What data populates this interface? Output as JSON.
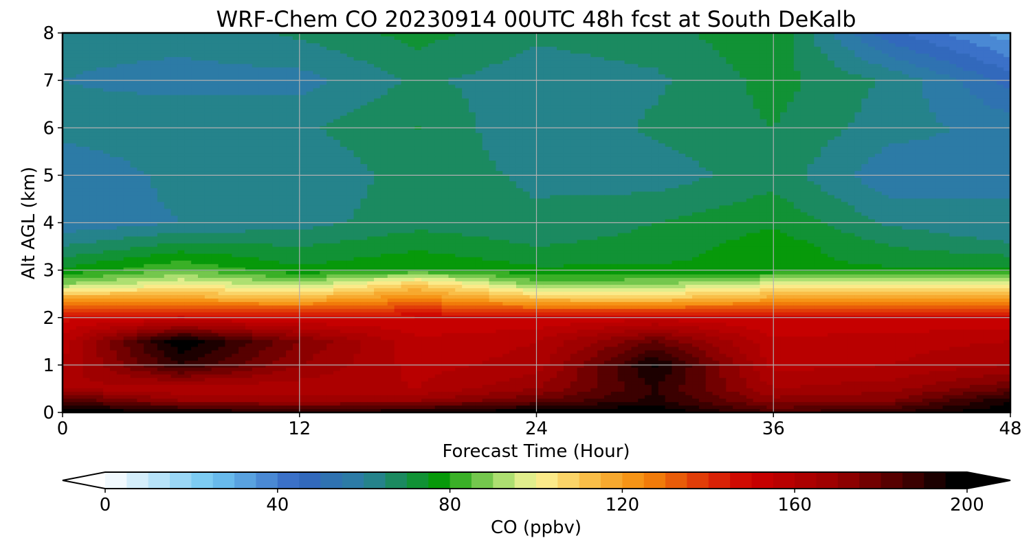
{
  "chart_data": {
    "type": "heatmap",
    "title": "WRF-Chem CO  20230914 00UTC 48h fcst at South DeKalb",
    "xlabel": "Forecast Time (Hour)",
    "ylabel": "Alt AGL (km)",
    "xlim": [
      0,
      48
    ],
    "ylim": [
      0,
      8
    ],
    "x_ticks": [
      0,
      12,
      24,
      36,
      48
    ],
    "y_ticks": [
      0,
      1,
      2,
      3,
      4,
      5,
      6,
      7,
      8
    ],
    "grid": true,
    "colorbar": {
      "label": "CO  (ppbv)",
      "range": [
        0,
        200
      ],
      "step": 5,
      "ticks": [
        0,
        40,
        80,
        120,
        160,
        200
      ],
      "extend": "both",
      "orientation": "horizontal",
      "placement": "bottom",
      "color_stops": [
        {
          "v": 0,
          "c": "#ffffff"
        },
        {
          "v": 25,
          "c": "#6fc6f2"
        },
        {
          "v": 45,
          "c": "#3465c2"
        },
        {
          "v": 60,
          "c": "#2a7fa0"
        },
        {
          "v": 78,
          "c": "#069a06"
        },
        {
          "v": 92,
          "c": "#a8dd6e"
        },
        {
          "v": 100,
          "c": "#fbf59a"
        },
        {
          "v": 112,
          "c": "#f9c04a"
        },
        {
          "v": 125,
          "c": "#f58a0a"
        },
        {
          "v": 140,
          "c": "#dd2d08"
        },
        {
          "v": 150,
          "c": "#cc0000"
        },
        {
          "v": 170,
          "c": "#990000"
        },
        {
          "v": 185,
          "c": "#4a0000"
        },
        {
          "v": 197,
          "c": "#000000"
        },
        {
          "v": 200,
          "c": "#000000"
        }
      ],
      "under_color": "#ffffff",
      "over_color": "#000000"
    },
    "grid_x": [
      0,
      6,
      12,
      18,
      24,
      30,
      36,
      42,
      48
    ],
    "grid_y": [
      0,
      0.25,
      0.5,
      1,
      1.5,
      2,
      2.4,
      2.7,
      3,
      3.5,
      4,
      5,
      6,
      7,
      8
    ],
    "values": [
      [
        200,
        196,
        190,
        195,
        200,
        200,
        185,
        190,
        200
      ],
      [
        185,
        170,
        168,
        170,
        180,
        192,
        172,
        175,
        195
      ],
      [
        165,
        160,
        162,
        160,
        170,
        190,
        165,
        168,
        180
      ],
      [
        160,
        190,
        170,
        158,
        162,
        196,
        158,
        160,
        165
      ],
      [
        158,
        200,
        175,
        156,
        160,
        180,
        156,
        158,
        160
      ],
      [
        148,
        150,
        148,
        150,
        150,
        152,
        150,
        150,
        150
      ],
      [
        120,
        118,
        115,
        125,
        112,
        110,
        118,
        120,
        122
      ],
      [
        90,
        100,
        92,
        110,
        88,
        90,
        98,
        100,
        100
      ],
      [
        76,
        85,
        76,
        80,
        76,
        76,
        76,
        76,
        76
      ],
      [
        65,
        72,
        70,
        74,
        70,
        72,
        78,
        70,
        66
      ],
      [
        56,
        60,
        63,
        68,
        66,
        70,
        74,
        64,
        60
      ],
      [
        55,
        62,
        60,
        68,
        64,
        62,
        68,
        56,
        60
      ],
      [
        62,
        64,
        64,
        70,
        60,
        66,
        70,
        62,
        58
      ],
      [
        60,
        58,
        58,
        66,
        62,
        64,
        72,
        64,
        48
      ],
      [
        62,
        62,
        66,
        72,
        66,
        68,
        74,
        46,
        32
      ]
    ]
  }
}
